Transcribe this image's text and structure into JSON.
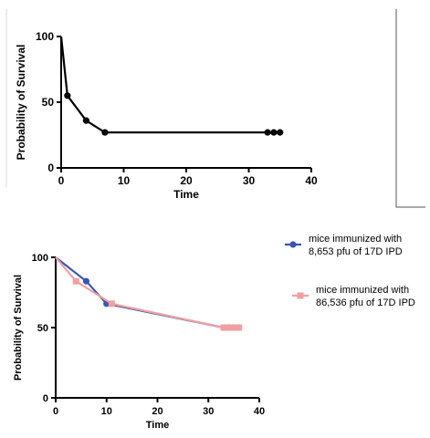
{
  "chart_data": [
    {
      "type": "line",
      "title": "",
      "xlabel": "Time",
      "ylabel": "Probability of Survival",
      "xlim": [
        0,
        40
      ],
      "ylim": [
        0,
        100
      ],
      "xticks": [
        "0",
        "10",
        "20",
        "30",
        "40"
      ],
      "yticks": [
        "0",
        "50",
        "100"
      ],
      "grid": false,
      "color": "#000000",
      "series": [
        {
          "x": [
            0,
            1,
            4,
            7,
            33,
            34,
            35
          ],
          "y": [
            100,
            55,
            36,
            27,
            27,
            27,
            27
          ]
        }
      ]
    },
    {
      "type": "line",
      "title": "",
      "xlabel": "Time",
      "ylabel": "Probability of Survival",
      "xlim": [
        0,
        40
      ],
      "ylim": [
        0,
        100
      ],
      "xticks": [
        "0",
        "10",
        "20",
        "30",
        "40"
      ],
      "yticks": [
        "0",
        "50",
        "100"
      ],
      "grid": false,
      "legend": "right",
      "series": [
        {
          "name": "mice immunized with 8,653 pfu of 17D IPD",
          "name_lines": [
            "mice immunized with",
            "8,653 pfu of 17D IPD"
          ],
          "color": "#3a56b3",
          "marker": "circle",
          "x": [
            0,
            6,
            10,
            33,
            34,
            35,
            36
          ],
          "y": [
            100,
            83,
            67,
            50,
            50,
            50,
            50
          ]
        },
        {
          "name": "mice immunized with 86,536 pfu of 17D IPD",
          "name_lines": [
            "mice immunized with",
            "86,536 pfu of 17D IPD"
          ],
          "color": "#f0a0a0",
          "marker": "square",
          "x": [
            0,
            4,
            11,
            33,
            34,
            35,
            36
          ],
          "y": [
            100,
            83,
            67,
            50,
            50,
            50,
            50
          ]
        }
      ]
    }
  ]
}
